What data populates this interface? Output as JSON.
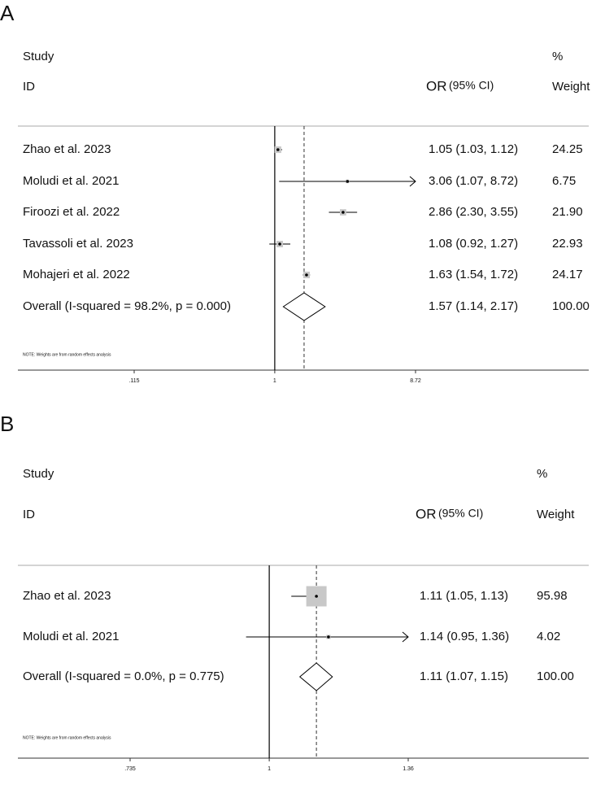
{
  "chart_data": [
    {
      "type": "forest",
      "panel_label": "A",
      "headers": {
        "study": "Study",
        "id": "ID",
        "effect": "OR",
        "ci": "(95% CI)",
        "pct": "%",
        "weight": "Weight"
      },
      "categories": [
        "Zhao et al. 2023",
        "Moludi et al. 2021",
        "Firoozi et al. 2022",
        "Tavassoli et al. 2023",
        "Mohajeri et al. 2022"
      ],
      "values": [
        1.05,
        3.06,
        2.86,
        1.08,
        1.63
      ],
      "ci_low": [
        1.03,
        1.07,
        2.3,
        0.92,
        1.54
      ],
      "ci_high": [
        1.12,
        8.72,
        3.55,
        1.27,
        1.72
      ],
      "value_labels": [
        "1.05 (1.03, 1.12)",
        "3.06 (1.07, 8.72)",
        "2.86 (2.30, 3.55)",
        "1.08 (0.92, 1.27)",
        "1.63 (1.54, 1.72)"
      ],
      "weights": [
        24.25,
        6.75,
        21.9,
        22.93,
        24.17
      ],
      "weight_labels": [
        "24.25",
        "6.75",
        "21.90",
        "22.93",
        "24.17"
      ],
      "overall": {
        "label": "Overall  (I-squared = 98.2%, p = 0.000)",
        "value": 1.57,
        "ci_low": 1.14,
        "ci_high": 2.17,
        "value_label": "1.57 (1.14, 2.17)",
        "weight": 100,
        "weight_label": "100.00"
      },
      "note": "NOTE: Weights are from random effects analysis",
      "log_scale": true,
      "xlim": [
        0.115,
        8.72
      ],
      "xticks": [
        {
          "value": 0.115,
          "label": ".115"
        },
        1,
        8.72
      ]
    },
    {
      "type": "forest",
      "panel_label": "B",
      "headers": {
        "study": "Study",
        "id": "ID",
        "effect": "OR",
        "ci": "(95% CI)",
        "pct": "%",
        "weight": "Weight"
      },
      "categories": [
        "Zhao et al. 2023",
        "Moludi et al. 2021"
      ],
      "values": [
        1.11,
        1.14
      ],
      "ci_low": [
        1.05,
        0.95
      ],
      "ci_high": [
        1.13,
        1.36
      ],
      "value_labels": [
        "1.11 (1.05, 1.13)",
        "1.14 (0.95, 1.36)"
      ],
      "weights": [
        95.98,
        4.02
      ],
      "weight_labels": [
        "95.98",
        "4.02"
      ],
      "overall": {
        "label": "Overall  (I-squared = 0.0%, p = 0.775)",
        "value": 1.11,
        "ci_low": 1.07,
        "ci_high": 1.15,
        "value_label": "1.11 (1.07, 1.15)",
        "weight": 100,
        "weight_label": "100.00"
      },
      "note": "NOTE: Weights are from random effects analysis",
      "log_scale": true,
      "xlim": [
        0.735,
        1.36
      ],
      "xticks": [
        {
          "value": 0.735,
          "label": ".735"
        },
        1,
        1.36
      ]
    }
  ]
}
